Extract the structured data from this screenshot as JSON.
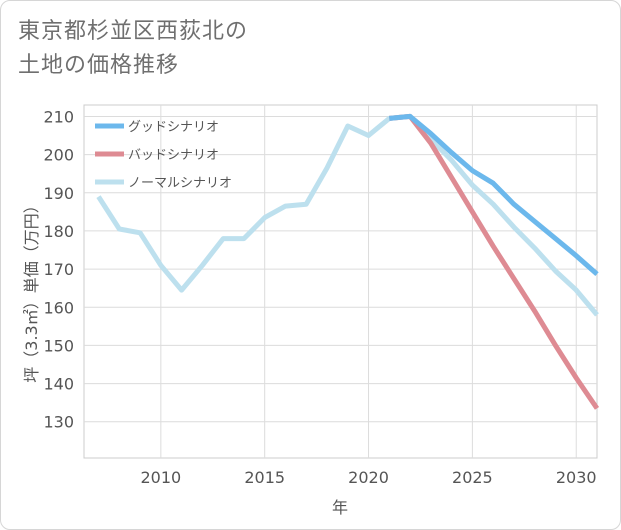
{
  "title_line1": "東京都杉並区西荻北の",
  "title_line2": "土地の価格推移",
  "chart_data": {
    "type": "line",
    "xlabel": "年",
    "ylabel": "坪（3.3㎡）単価（万円）",
    "xlim": [
      2006.3,
      2031
    ],
    "ylim": [
      120.5,
      213
    ],
    "xticks": [
      2010,
      2015,
      2020,
      2025,
      2030
    ],
    "yticks": [
      130,
      140,
      150,
      160,
      170,
      180,
      190,
      200,
      210
    ],
    "grid": true,
    "legend_position": "top-left",
    "series": [
      {
        "name": "グッドシナリオ",
        "color": "#6cb8ec",
        "x": [
          2021,
          2022,
          2023,
          2024,
          2025,
          2026,
          2027,
          2028,
          2029,
          2030,
          2031
        ],
        "y": [
          209.5,
          210,
          205.5,
          200.5,
          195.8,
          192.5,
          187,
          182.5,
          178,
          173.5,
          168.7
        ]
      },
      {
        "name": "バッドシナリオ",
        "color": "#de8b93",
        "x": [
          2021,
          2022,
          2023,
          2024,
          2025,
          2026,
          2027,
          2028,
          2029,
          2030,
          2031
        ],
        "y": [
          209.5,
          210,
          203,
          194,
          185,
          176,
          167.5,
          159,
          150,
          141.5,
          133.5
        ]
      },
      {
        "name": "ノーマルシナリオ",
        "color": "#bde0ee",
        "x": [
          2007,
          2008,
          2009,
          2010,
          2011,
          2012,
          2013,
          2014,
          2015,
          2016,
          2017,
          2018,
          2019,
          2020,
          2021,
          2022,
          2023,
          2024,
          2025,
          2026,
          2027,
          2028,
          2029,
          2030,
          2031
        ],
        "y": [
          189,
          180.5,
          179.5,
          171,
          164.5,
          171,
          178,
          178,
          183.5,
          186.5,
          187,
          196.5,
          207.5,
          205,
          209.5,
          210,
          204,
          198.5,
          192,
          187,
          181,
          175.5,
          169.5,
          164.5,
          158
        ]
      }
    ]
  }
}
